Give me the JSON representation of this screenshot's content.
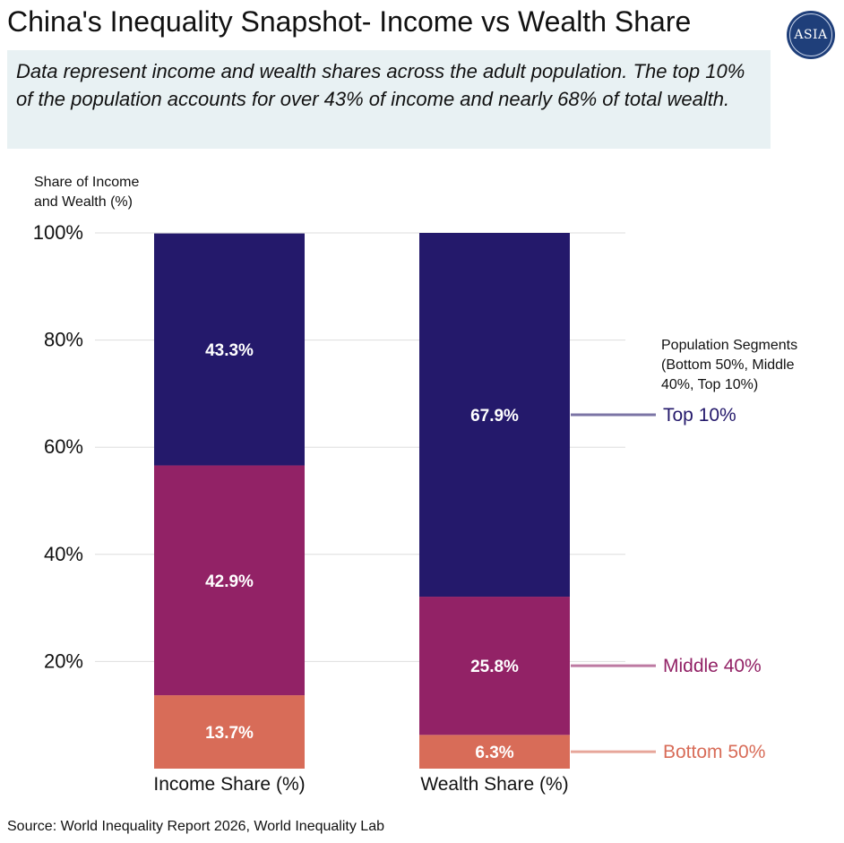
{
  "header": {
    "title": "China's Inequality Snapshot- Income vs Wealth Share",
    "logo_text": "ASIA",
    "subtitle": "Data represent income and wealth shares across the adult population. The top 10% of the population accounts for over 43% of income and nearly 68% of total wealth."
  },
  "chart_data": {
    "type": "bar",
    "stacked": true,
    "ylabel_lines": [
      "Share of Income",
      "and Wealth (%)"
    ],
    "ylim": [
      0,
      100
    ],
    "yticks": [
      20,
      40,
      60,
      80,
      100
    ],
    "ytick_labels": [
      "20%",
      "40%",
      "60%",
      "80%",
      "100%"
    ],
    "categories": [
      "Income Share (%)",
      "Wealth Share (%)"
    ],
    "series": [
      {
        "name": "Bottom 50%",
        "color": "#d86c58",
        "values": [
          13.7,
          6.3
        ],
        "labels": [
          "13.7%",
          "6.3%"
        ]
      },
      {
        "name": "Middle 40%",
        "color": "#922266",
        "values": [
          42.9,
          25.8
        ],
        "labels": [
          "42.9%",
          "25.8%"
        ]
      },
      {
        "name": "Top 10%",
        "color": "#24196b",
        "values": [
          43.3,
          67.9
        ],
        "labels": [
          "43.3%",
          "67.9%"
        ]
      }
    ],
    "legend_title_lines": [
      "Population Segments",
      "(Bottom 50%, Middle",
      "40%, Top 10%)"
    ],
    "legend_placement": "right"
  },
  "footer": {
    "source": "Source: World Inequality Report 2026, World Inequality Lab"
  }
}
